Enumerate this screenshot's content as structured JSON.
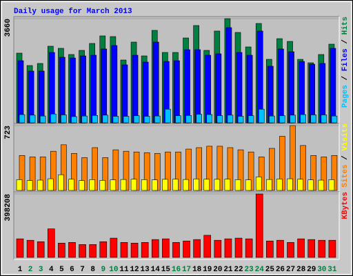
{
  "chart_data": [
    {
      "type": "bar",
      "title": "Daily usage for March 2013",
      "categories": [
        "1",
        "2",
        "3",
        "4",
        "5",
        "6",
        "7",
        "8",
        "9",
        "10",
        "11",
        "12",
        "13",
        "14",
        "15",
        "16",
        "17",
        "18",
        "19",
        "20",
        "21",
        "22",
        "23",
        "24",
        "25",
        "26",
        "27",
        "28",
        "29",
        "30",
        "31"
      ],
      "category_colors": [
        "#000000",
        "#008040",
        "#008040",
        "#000000",
        "#000000",
        "#000000",
        "#000000",
        "#000000",
        "#008040",
        "#008040",
        "#000000",
        "#000000",
        "#000000",
        "#000000",
        "#000000",
        "#008040",
        "#008040",
        "#000000",
        "#000000",
        "#000000",
        "#000000",
        "#000000",
        "#008040",
        "#008040",
        "#000000",
        "#000000",
        "#000000",
        "#000000",
        "#000000",
        "#008040",
        "#008040"
      ],
      "legend_separator": " / ",
      "ylim": [
        0,
        3660
      ],
      "yticks": [
        3660
      ],
      "series": [
        {
          "name": "Pages",
          "color": "#00C0FF",
          "values": [
            290,
            270,
            240,
            310,
            280,
            220,
            240,
            260,
            270,
            230,
            230,
            250,
            230,
            240,
            480,
            250,
            260,
            300,
            290,
            250,
            270,
            230,
            250,
            480,
            240,
            250,
            270,
            290,
            280,
            280,
            240
          ]
        },
        {
          "name": "Files",
          "color": "#0000FF",
          "values": [
            2182,
            1818,
            1818,
            2472,
            2303,
            2278,
            2351,
            2375,
            2594,
            2715,
            2036,
            2375,
            2133,
            2836,
            2157,
            2182,
            2569,
            2569,
            2375,
            2424,
            3345,
            2472,
            2375,
            3224,
            1988,
            2594,
            2497,
            2157,
            2060,
            2085,
            2618
          ]
        },
        {
          "name": "Hits",
          "color": "#008040",
          "values": [
            2448,
            2012,
            2085,
            2691,
            2618,
            2400,
            2545,
            2788,
            3054,
            3030,
            2206,
            2836,
            2351,
            3248,
            2472,
            2472,
            2981,
            3418,
            2545,
            3224,
            3660,
            3175,
            2666,
            3490,
            2230,
            2957,
            2860,
            2230,
            2109,
            2400,
            2763
          ]
        }
      ]
    },
    {
      "type": "bar",
      "legend_separator": " / ",
      "ylim": [
        0,
        723
      ],
      "yticks": [
        723
      ],
      "series": [
        {
          "name": "Sites",
          "color": "#FF8000",
          "values": [
            390,
            374,
            374,
            437,
            509,
            413,
            366,
            477,
            366,
            453,
            437,
            429,
            421,
            413,
            429,
            429,
            461,
            477,
            493,
            493,
            477,
            453,
            429,
            374,
            469,
            604,
            723,
            501,
            390,
            374,
            390
          ]
        },
        {
          "name": "Visits",
          "color": "#FFFF00",
          "values": [
            120,
            110,
            115,
            130,
            175,
            125,
            110,
            120,
            112,
            118,
            122,
            125,
            120,
            118,
            124,
            126,
            122,
            128,
            125,
            124,
            126,
            120,
            118,
            151,
            122,
            128,
            130,
            125,
            118,
            115,
            120
          ]
        }
      ]
    },
    {
      "type": "bar",
      "ylim": [
        0,
        398208
      ],
      "yticks": [
        398208
      ],
      "series": [
        {
          "name": "KBytes",
          "color": "#FF0000",
          "values": [
            116324,
            107376,
            98428,
            178960,
            89480,
            93954,
            80532,
            80532,
            98428,
            120798,
            93954,
            89480,
            93954,
            111850,
            116324,
            93954,
            102902,
            111850,
            138694,
            107376,
            116324,
            120798,
            116324,
            398208,
            102902,
            107376,
            93954,
            116324,
            111850,
            107376,
            107376
          ]
        }
      ]
    }
  ]
}
